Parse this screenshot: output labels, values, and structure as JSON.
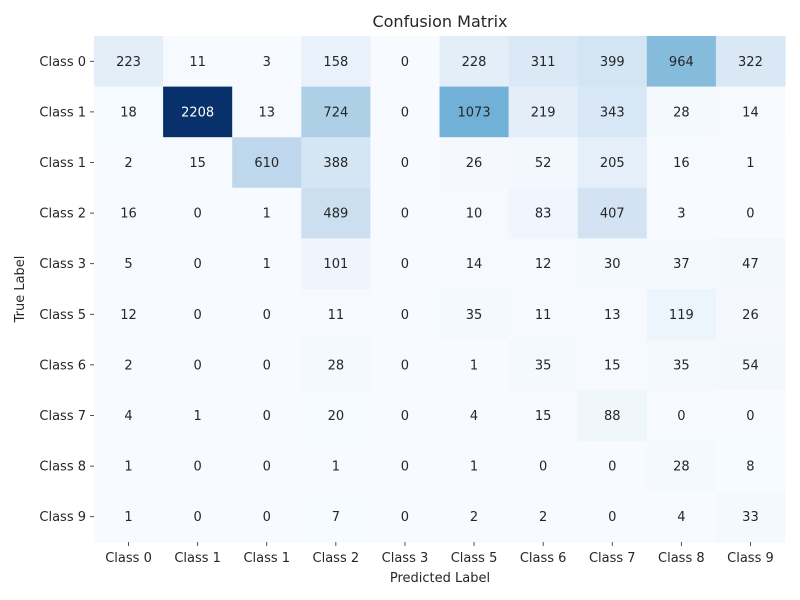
{
  "chart_data": {
    "type": "heatmap",
    "title": "Confusion Matrix",
    "xlabel": "Predicted Label",
    "ylabel": "True Label",
    "x_categories": [
      "Class 0",
      "Class 1",
      "Class 1",
      "Class 2",
      "Class 3",
      "Class 5",
      "Class 6",
      "Class 7",
      "Class 8",
      "Class 9"
    ],
    "y_categories": [
      "Class 0",
      "Class 1",
      "Class 1",
      "Class 2",
      "Class 3",
      "Class 5",
      "Class 6",
      "Class 7",
      "Class 8",
      "Class 9"
    ],
    "values": [
      [
        223,
        11,
        3,
        158,
        0,
        228,
        311,
        399,
        964,
        322
      ],
      [
        18,
        2208,
        13,
        724,
        0,
        1073,
        219,
        343,
        28,
        14
      ],
      [
        2,
        15,
        610,
        388,
        0,
        26,
        52,
        205,
        16,
        1
      ],
      [
        16,
        0,
        1,
        489,
        0,
        10,
        83,
        407,
        3,
        0
      ],
      [
        5,
        0,
        1,
        101,
        0,
        14,
        12,
        30,
        37,
        47
      ],
      [
        12,
        0,
        0,
        11,
        0,
        35,
        11,
        13,
        119,
        26
      ],
      [
        2,
        0,
        0,
        28,
        0,
        1,
        35,
        15,
        35,
        54
      ],
      [
        4,
        1,
        0,
        20,
        0,
        4,
        15,
        88,
        0,
        0
      ],
      [
        1,
        0,
        0,
        1,
        0,
        1,
        0,
        0,
        28,
        8
      ],
      [
        1,
        0,
        0,
        7,
        0,
        2,
        2,
        0,
        4,
        33
      ]
    ],
    "colormap": "Blues",
    "value_range": [
      0,
      2208
    ],
    "colorbar": false,
    "grid": false
  }
}
